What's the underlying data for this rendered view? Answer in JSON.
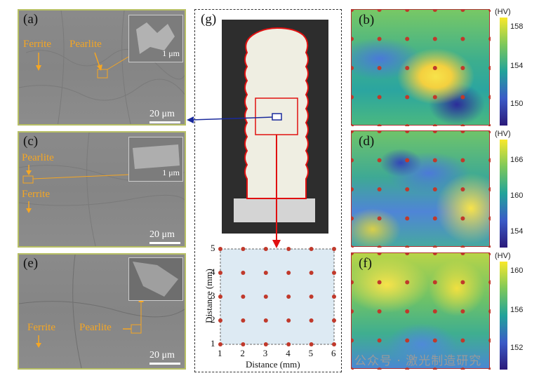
{
  "panels": {
    "a": {
      "label": "(a)",
      "ferrite": "Ferrite",
      "pearlite": "Pearlite",
      "scale": "20 μm",
      "inset_scale": "1 μm"
    },
    "c": {
      "label": "(c)",
      "ferrite": "Ferrite",
      "pearlite": "Pearlite",
      "scale": "20 μm",
      "inset_scale": "1 μm"
    },
    "e": {
      "label": "(e)",
      "ferrite": "Ferrite",
      "pearlite": "Pearlite",
      "scale": "20 μm"
    },
    "g": {
      "label": "(g)"
    },
    "b": {
      "label": "(b)",
      "unit": "(HV)",
      "ticks": [
        "158",
        "154",
        "150"
      ]
    },
    "d": {
      "label": "(d)",
      "unit": "(HV)",
      "ticks": [
        "166",
        "160",
        "154"
      ]
    },
    "f": {
      "label": "(f)",
      "unit": "(HV)",
      "ticks": [
        "160",
        "156",
        "152"
      ]
    }
  },
  "grid_plot": {
    "xlabel": "Distance (mm)",
    "ylabel": "Distance (mm)",
    "xticks": [
      "1",
      "2",
      "3",
      "4",
      "5",
      "6"
    ],
    "yticks": [
      "1",
      "2",
      "3",
      "4",
      "5"
    ]
  },
  "watermark": "公众号 · 激光制造研究",
  "colors": {
    "ferrite_label": "#f5a623",
    "frame": "#b7bf64",
    "point": "#c0392b",
    "arrow_blue": "#1a2a9c",
    "arrow_red": "#e01010"
  }
}
